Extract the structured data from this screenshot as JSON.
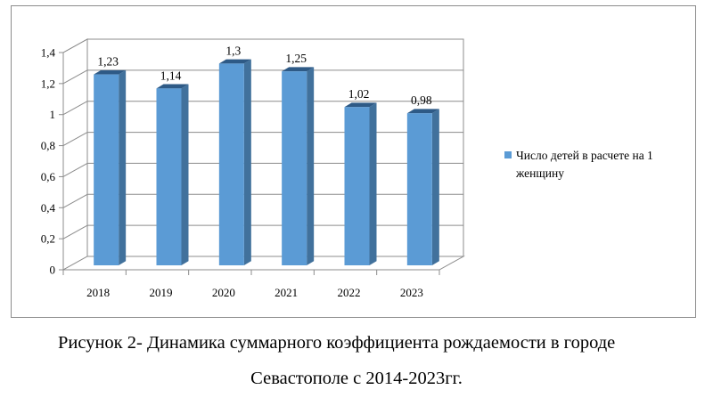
{
  "chart_data": {
    "type": "bar",
    "categories": [
      "2018",
      "2019",
      "2020",
      "2021",
      "2022",
      "2023"
    ],
    "series": [
      {
        "name": "Число детей в расчете на 1 женщину",
        "values": [
          1.23,
          1.14,
          1.3,
          1.25,
          1.02,
          0.98
        ],
        "value_labels": [
          "1,23",
          "1,14",
          "1,3",
          "1,25",
          "1,02",
          "0,98"
        ],
        "color": "#5B9BD5"
      }
    ],
    "ylim": [
      0,
      1.4
    ],
    "yticks": [
      0,
      0.2,
      0.4,
      0.6,
      0.8,
      1,
      1.2,
      1.4
    ],
    "ytick_labels": [
      "0",
      "0,2",
      "0,4",
      "0,6",
      "0,8",
      "1",
      "1,2",
      "1,4"
    ],
    "grid": true,
    "legend_position": "right",
    "legend_lines": [
      "Число детей в расчете на 1",
      "женщину"
    ],
    "title": "",
    "xlabel": "",
    "ylabel": ""
  },
  "caption": {
    "line1": "Рисунок 2- Динамика суммарного коэффициента рождаемости в городе",
    "line2": "Севастополе с 2014-2023гг."
  }
}
